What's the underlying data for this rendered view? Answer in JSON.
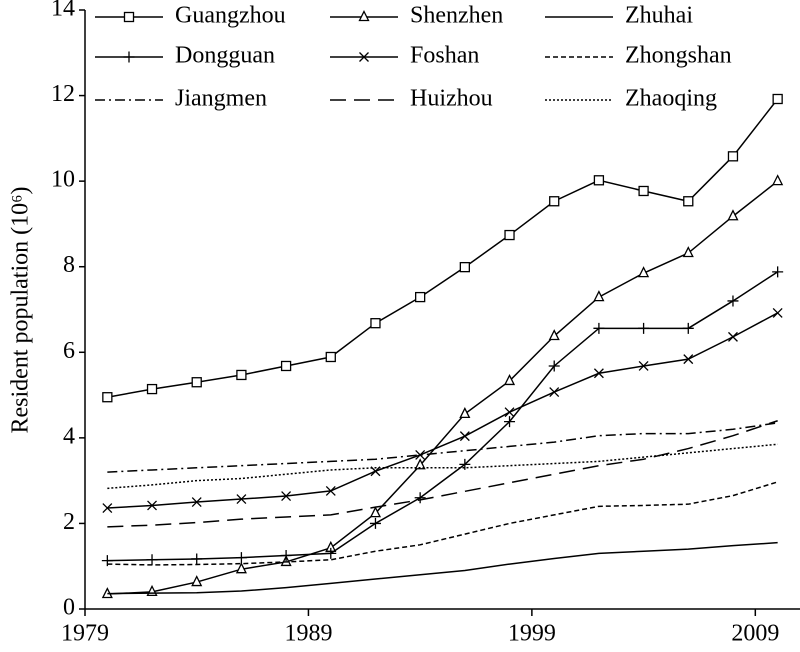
{
  "chart_data": {
    "type": "line",
    "y_label": "Resident population (10⁶)",
    "x": [
      1980,
      1982,
      1984,
      1986,
      1988,
      1990,
      1992,
      1994,
      1996,
      1998,
      2000,
      2002,
      2004,
      2006,
      2008,
      2010
    ],
    "xlim": [
      1979,
      2011
    ],
    "xticks": [
      1979,
      1989,
      1999,
      2009
    ],
    "ylim": [
      0,
      14
    ],
    "yticks": [
      0,
      2,
      4,
      6,
      8,
      10,
      12,
      14
    ],
    "legend": "top",
    "series": [
      {
        "name": "Guangzhou",
        "color": "#000000",
        "marker": "square",
        "dash": "solid",
        "values": [
          4.95,
          5.14,
          5.3,
          5.47,
          5.68,
          5.89,
          6.68,
          7.29,
          7.99,
          8.74,
          9.53,
          10.02,
          9.77,
          9.53,
          10.58,
          11.92
        ]
      },
      {
        "name": "Shenzhen",
        "color": "#000000",
        "marker": "triangle",
        "dash": "solid",
        "values": [
          0.35,
          0.4,
          0.63,
          0.93,
          1.1,
          1.43,
          2.24,
          3.36,
          4.56,
          5.33,
          6.38,
          7.29,
          7.85,
          8.32,
          9.18,
          10.0
        ]
      },
      {
        "name": "Zhuhai",
        "color": "#000000",
        "marker": "none",
        "dash": "solid",
        "values": [
          0.36,
          0.37,
          0.38,
          0.42,
          0.5,
          0.6,
          0.7,
          0.8,
          0.9,
          1.05,
          1.18,
          1.3,
          1.35,
          1.4,
          1.48,
          1.55
        ]
      },
      {
        "name": "Dongguan",
        "color": "#000000",
        "marker": "plus",
        "dash": "solid",
        "values": [
          1.13,
          1.15,
          1.17,
          1.2,
          1.25,
          1.3,
          2.0,
          2.6,
          3.38,
          4.38,
          5.68,
          6.56,
          6.56,
          6.56,
          7.2,
          7.88
        ]
      },
      {
        "name": "Foshan",
        "color": "#000000",
        "marker": "x",
        "dash": "solid",
        "values": [
          2.36,
          2.42,
          2.5,
          2.57,
          2.64,
          2.76,
          3.22,
          3.6,
          4.04,
          4.6,
          5.07,
          5.51,
          5.68,
          5.84,
          6.36,
          6.92
        ]
      },
      {
        "name": "Zhongshan",
        "color": "#000000",
        "marker": "none",
        "dash": "short",
        "values": [
          1.05,
          1.03,
          1.04,
          1.06,
          1.1,
          1.15,
          1.35,
          1.5,
          1.75,
          2.0,
          2.2,
          2.4,
          2.42,
          2.45,
          2.65,
          2.97
        ]
      },
      {
        "name": "Jiangmen",
        "color": "#000000",
        "marker": "none",
        "dash": "dashdot",
        "values": [
          3.2,
          3.25,
          3.3,
          3.35,
          3.4,
          3.45,
          3.5,
          3.6,
          3.7,
          3.8,
          3.9,
          4.05,
          4.1,
          4.1,
          4.2,
          4.35
        ]
      },
      {
        "name": "Huizhou",
        "color": "#000000",
        "marker": "none",
        "dash": "long",
        "values": [
          1.92,
          1.96,
          2.02,
          2.1,
          2.15,
          2.2,
          2.38,
          2.55,
          2.75,
          2.95,
          3.15,
          3.35,
          3.5,
          3.75,
          4.05,
          4.4
        ]
      },
      {
        "name": "Zhaoqing",
        "color": "#000000",
        "marker": "none",
        "dash": "dot",
        "values": [
          2.82,
          2.9,
          3.0,
          3.05,
          3.15,
          3.25,
          3.3,
          3.3,
          3.3,
          3.35,
          3.4,
          3.45,
          3.55,
          3.65,
          3.75,
          3.85
        ]
      }
    ]
  }
}
